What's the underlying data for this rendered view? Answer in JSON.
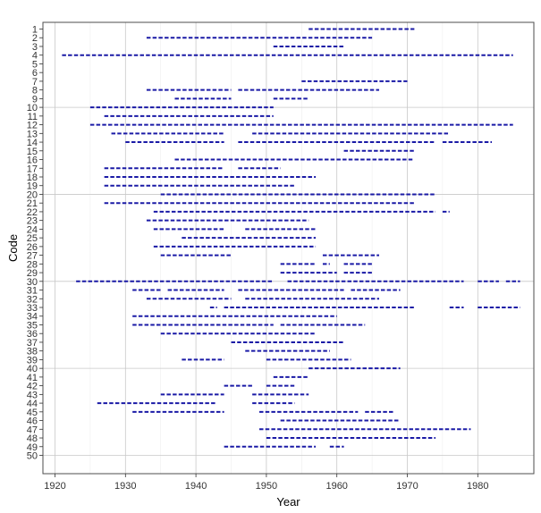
{
  "chart_data": {
    "type": "timeline",
    "xlabel": "Year",
    "ylabel": "Code",
    "xlim": [
      1918,
      1987
    ],
    "x_ticks": [
      1920,
      1930,
      1940,
      1950,
      1960,
      1970,
      1980
    ],
    "categories": [
      "1",
      "2",
      "3",
      "4",
      "5",
      "6",
      "7",
      "8",
      "9",
      "10",
      "11",
      "12",
      "13",
      "14",
      "15",
      "16",
      "17",
      "18",
      "19",
      "20",
      "21",
      "22",
      "23",
      "24",
      "25",
      "26",
      "27",
      "28",
      "29",
      "30",
      "31",
      "32",
      "33",
      "34",
      "35",
      "36",
      "37",
      "38",
      "39",
      "40",
      "41",
      "42",
      "43",
      "44",
      "45",
      "46",
      "47",
      "48",
      "49",
      "50"
    ],
    "y_major_gridlines_at": [
      "10",
      "20",
      "30",
      "40",
      "50"
    ],
    "grid": true,
    "series_color": "#1a1aa6",
    "series": [
      {
        "code": "1",
        "intervals": [
          [
            1956,
            1971
          ]
        ]
      },
      {
        "code": "2",
        "intervals": [
          [
            1933,
            1965
          ]
        ]
      },
      {
        "code": "3",
        "intervals": [
          [
            1951,
            1961
          ]
        ]
      },
      {
        "code": "4",
        "intervals": [
          [
            1921,
            1985
          ]
        ]
      },
      {
        "code": "5",
        "intervals": []
      },
      {
        "code": "6",
        "intervals": []
      },
      {
        "code": "7",
        "intervals": [
          [
            1955,
            1970
          ]
        ]
      },
      {
        "code": "8",
        "intervals": [
          [
            1933,
            1945
          ],
          [
            1946,
            1966
          ]
        ]
      },
      {
        "code": "9",
        "intervals": [
          [
            1937,
            1945
          ],
          [
            1951,
            1956
          ]
        ]
      },
      {
        "code": "10",
        "intervals": [
          [
            1925,
            1951
          ]
        ]
      },
      {
        "code": "11",
        "intervals": [
          [
            1927,
            1951
          ]
        ]
      },
      {
        "code": "12",
        "intervals": [
          [
            1925,
            1985
          ]
        ]
      },
      {
        "code": "13",
        "intervals": [
          [
            1928,
            1944
          ],
          [
            1948,
            1976
          ]
        ]
      },
      {
        "code": "14",
        "intervals": [
          [
            1930,
            1944
          ],
          [
            1946,
            1974
          ],
          [
            1975,
            1982
          ]
        ]
      },
      {
        "code": "15",
        "intervals": [
          [
            1961,
            1971
          ]
        ]
      },
      {
        "code": "16",
        "intervals": [
          [
            1937,
            1971
          ]
        ]
      },
      {
        "code": "17",
        "intervals": [
          [
            1927,
            1944
          ],
          [
            1946,
            1952
          ]
        ]
      },
      {
        "code": "18",
        "intervals": [
          [
            1927,
            1957
          ]
        ]
      },
      {
        "code": "19",
        "intervals": [
          [
            1927,
            1954
          ]
        ]
      },
      {
        "code": "20",
        "intervals": [
          [
            1935,
            1974
          ]
        ]
      },
      {
        "code": "21",
        "intervals": [
          [
            1927,
            1971
          ]
        ]
      },
      {
        "code": "22",
        "intervals": [
          [
            1934,
            1974
          ],
          [
            1975,
            1976
          ]
        ]
      },
      {
        "code": "23",
        "intervals": [
          [
            1933,
            1956
          ]
        ]
      },
      {
        "code": "24",
        "intervals": [
          [
            1934,
            1944
          ],
          [
            1947,
            1957
          ]
        ]
      },
      {
        "code": "25",
        "intervals": [
          [
            1938,
            1957
          ]
        ]
      },
      {
        "code": "26",
        "intervals": [
          [
            1934,
            1957
          ]
        ]
      },
      {
        "code": "27",
        "intervals": [
          [
            1935,
            1945
          ],
          [
            1958,
            1966
          ]
        ]
      },
      {
        "code": "28",
        "intervals": [
          [
            1952,
            1957
          ],
          [
            1958,
            1959
          ],
          [
            1961,
            1965
          ]
        ]
      },
      {
        "code": "29",
        "intervals": [
          [
            1952,
            1960
          ],
          [
            1961,
            1965
          ]
        ]
      },
      {
        "code": "30",
        "intervals": [
          [
            1923,
            1951
          ],
          [
            1953,
            1978
          ],
          [
            1980,
            1983
          ],
          [
            1984,
            1986
          ]
        ]
      },
      {
        "code": "31",
        "intervals": [
          [
            1931,
            1935
          ],
          [
            1936,
            1944
          ],
          [
            1946,
            1961
          ],
          [
            1962,
            1969
          ]
        ]
      },
      {
        "code": "32",
        "intervals": [
          [
            1933,
            1945
          ],
          [
            1947,
            1966
          ]
        ]
      },
      {
        "code": "33",
        "intervals": [
          [
            1942,
            1943
          ],
          [
            1944,
            1971
          ],
          [
            1976,
            1978
          ],
          [
            1980,
            1986
          ]
        ]
      },
      {
        "code": "34",
        "intervals": [
          [
            1931,
            1960
          ]
        ]
      },
      {
        "code": "35",
        "intervals": [
          [
            1931,
            1951
          ],
          [
            1952,
            1964
          ]
        ]
      },
      {
        "code": "36",
        "intervals": [
          [
            1935,
            1957
          ]
        ]
      },
      {
        "code": "37",
        "intervals": [
          [
            1945,
            1961
          ]
        ]
      },
      {
        "code": "38",
        "intervals": [
          [
            1947,
            1959
          ]
        ]
      },
      {
        "code": "39",
        "intervals": [
          [
            1938,
            1944
          ],
          [
            1950,
            1962
          ]
        ]
      },
      {
        "code": "40",
        "intervals": [
          [
            1956,
            1969
          ]
        ]
      },
      {
        "code": "41",
        "intervals": [
          [
            1951,
            1956
          ]
        ]
      },
      {
        "code": "42",
        "intervals": [
          [
            1944,
            1948
          ],
          [
            1950,
            1954
          ]
        ]
      },
      {
        "code": "43",
        "intervals": [
          [
            1935,
            1944
          ],
          [
            1948,
            1956
          ]
        ]
      },
      {
        "code": "44",
        "intervals": [
          [
            1926,
            1943
          ],
          [
            1948,
            1954
          ]
        ]
      },
      {
        "code": "45",
        "intervals": [
          [
            1931,
            1944
          ],
          [
            1949,
            1963
          ],
          [
            1964,
            1968
          ]
        ]
      },
      {
        "code": "46",
        "intervals": [
          [
            1952,
            1969
          ]
        ]
      },
      {
        "code": "47",
        "intervals": [
          [
            1949,
            1979
          ]
        ]
      },
      {
        "code": "48",
        "intervals": [
          [
            1950,
            1974
          ]
        ]
      },
      {
        "code": "49",
        "intervals": [
          [
            1944,
            1957
          ],
          [
            1959,
            1961
          ]
        ]
      },
      {
        "code": "50",
        "intervals": []
      }
    ]
  }
}
